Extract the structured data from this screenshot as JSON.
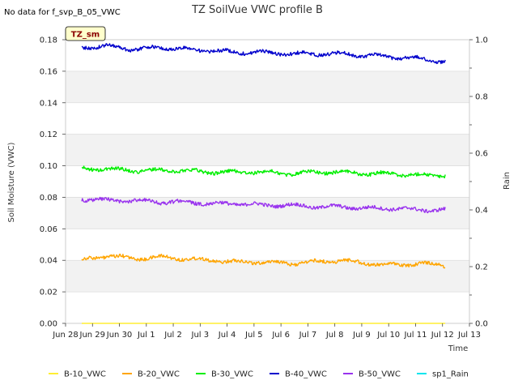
{
  "chart_data": {
    "type": "line",
    "title": "TZ SoilVue VWC profile B",
    "note": "No data for f_svp_B_05_VWC",
    "tag": "TZ_sm",
    "xlabel": "Time",
    "ylabel": "Soil Moisture (VWC)",
    "y2label": "Rain",
    "ylim": [
      0,
      0.18
    ],
    "y2lim": [
      0,
      1.0
    ],
    "y_ticks": [
      "0.00",
      "0.02",
      "0.04",
      "0.06",
      "0.08",
      "0.10",
      "0.12",
      "0.14",
      "0.16",
      "0.18"
    ],
    "y2_ticks": [
      "0.0",
      "0.2",
      "0.4",
      "0.6",
      "0.8",
      "1.0"
    ],
    "x_ticks": [
      "Jun 28",
      "Jun 29",
      "Jun 30",
      "Jul 1",
      "Jul 2",
      "Jul 3",
      "Jul 4",
      "Jul 5",
      "Jul 6",
      "Jul 7",
      "Jul 8",
      "Jul 9",
      "Jul 10",
      "Jul 11",
      "Jul 12",
      "Jul 13"
    ],
    "xlim": [
      "Jun 28",
      "Jul 13"
    ],
    "data_range": [
      "Jun 28",
      "Jul 12"
    ],
    "grid": true,
    "legend_placement": "bottom",
    "series": [
      {
        "name": "B-10_VWC",
        "color": "#ffee33",
        "values": [
          0.0,
          0.0,
          0.0,
          0.0,
          0.0,
          0.0,
          0.0,
          0.0,
          0.0,
          0.0,
          0.0,
          0.0,
          0.0,
          0.0,
          0.0
        ]
      },
      {
        "name": "B-20_VWC",
        "color": "#ffa500",
        "values": [
          0.04,
          0.043,
          0.041,
          0.042,
          0.041,
          0.04,
          0.039,
          0.039,
          0.038,
          0.039,
          0.04,
          0.038,
          0.037,
          0.038,
          0.037
        ]
      },
      {
        "name": "B-30_VWC",
        "color": "#00ee00",
        "values": [
          0.098,
          0.098,
          0.097,
          0.097,
          0.097,
          0.096,
          0.096,
          0.096,
          0.095,
          0.096,
          0.096,
          0.095,
          0.095,
          0.094,
          0.094
        ]
      },
      {
        "name": "B-40_VWC",
        "color": "#0000cc",
        "values": [
          0.175,
          0.176,
          0.174,
          0.175,
          0.174,
          0.173,
          0.172,
          0.172,
          0.171,
          0.171,
          0.171,
          0.17,
          0.169,
          0.168,
          0.166
        ]
      },
      {
        "name": "B-50_VWC",
        "color": "#9933ee",
        "values": [
          0.079,
          0.078,
          0.078,
          0.077,
          0.077,
          0.076,
          0.076,
          0.075,
          0.075,
          0.074,
          0.074,
          0.073,
          0.073,
          0.072,
          0.072
        ]
      },
      {
        "name": "sp1_Rain",
        "color": "#00e5ee",
        "values": []
      }
    ]
  }
}
